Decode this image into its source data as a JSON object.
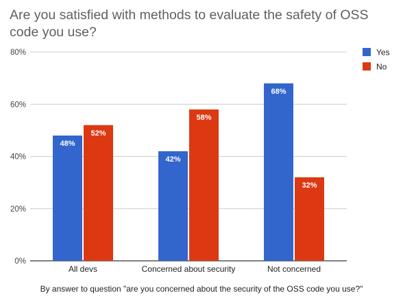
{
  "chart_data": {
    "type": "bar",
    "title": "Are you satisfied with methods to evaluate the safety of OSS code you use?",
    "xlabel": "By answer to question \"are you concerned about the security of the OSS code you use?\"",
    "ylabel": "",
    "categories": [
      "All devs",
      "Concerned about security",
      "Not concerned"
    ],
    "series": [
      {
        "name": "Yes",
        "values": [
          48,
          42,
          68
        ],
        "labels": [
          "48%",
          "42%",
          "68%"
        ],
        "color": "#3366cc"
      },
      {
        "name": "No",
        "values": [
          52,
          58,
          32
        ],
        "labels": [
          "52%",
          "58%",
          "32%"
        ],
        "color": "#dc3912"
      }
    ],
    "ylim": [
      0,
      80
    ],
    "yticks": [
      0,
      20,
      40,
      60,
      80
    ],
    "ytick_labels": [
      "0%",
      "20%",
      "40%",
      "60%",
      "80%"
    ],
    "grid": true,
    "legend": "right"
  }
}
